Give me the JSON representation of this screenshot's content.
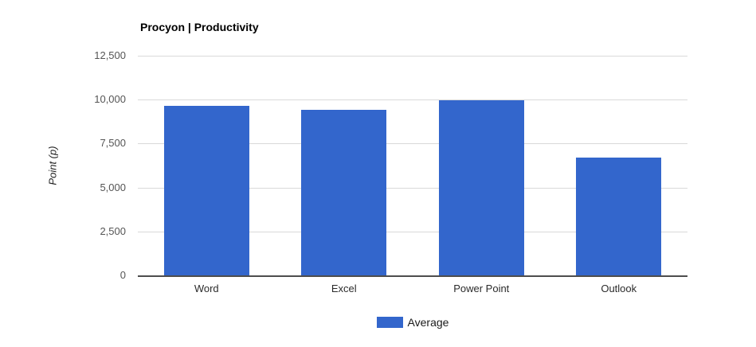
{
  "chart": {
    "title": "Procyon | Productivity",
    "y_axis_title": "Point (p)",
    "legend_label": "Average",
    "colors": {
      "bar": "#3366cc",
      "gridline": "#d9d9d9",
      "baseline": "#4d4d4d"
    },
    "axis": {
      "min": 0,
      "max": 12500,
      "ticks": [
        0,
        2500,
        5000,
        7500,
        10000,
        12500
      ],
      "tick_labels": [
        "0",
        "2,500",
        "5,000",
        "7,500",
        "10,000",
        "12,500"
      ]
    }
  },
  "chart_data": {
    "type": "bar",
    "title": "Procyon | Productivity",
    "categories": [
      "Word",
      "Excel",
      "Power Point",
      "Outlook"
    ],
    "series": [
      {
        "name": "Average",
        "values": [
          9650,
          9400,
          9950,
          6700
        ]
      }
    ],
    "xlabel": "",
    "ylabel": "Point (p)",
    "ylim": [
      0,
      12500
    ],
    "grid": true,
    "legend_position": "bottom"
  }
}
